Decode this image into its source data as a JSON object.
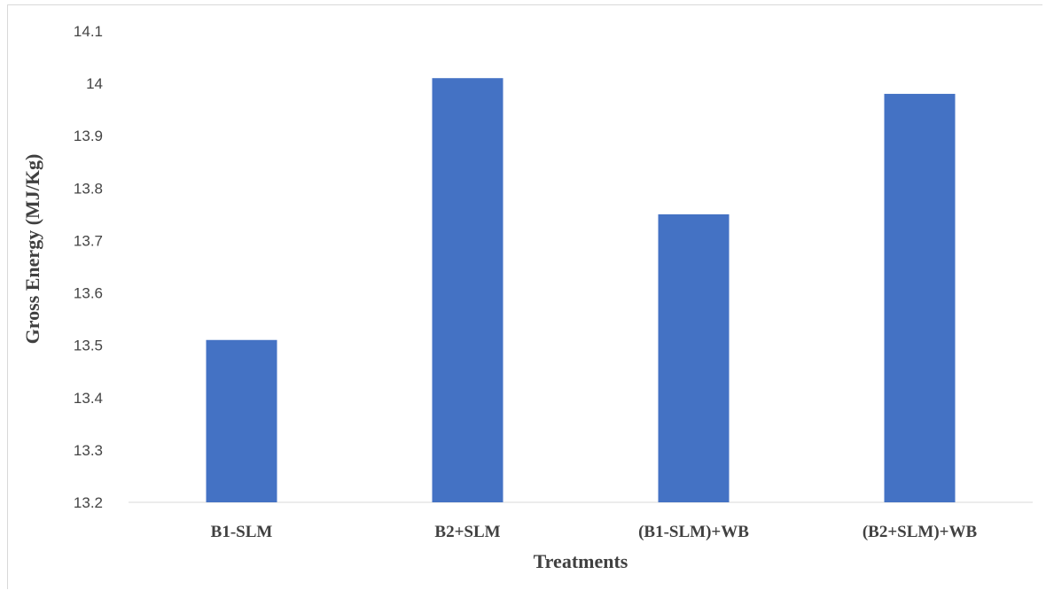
{
  "chart_data": {
    "type": "bar",
    "categories": [
      "B1-SLM",
      "B2+SLM",
      "(B1-SLM)+WB",
      "(B2+SLM)+WB"
    ],
    "values": [
      13.51,
      14.01,
      13.75,
      13.98
    ],
    "xlabel": "Treatments",
    "ylabel": "Gross Energy (MJ/Kg)",
    "ylim": [
      13.2,
      14.1
    ],
    "yticks": [
      "13.2",
      "13.3",
      "13.4",
      "13.5",
      "13.6",
      "13.7",
      "13.8",
      "13.9",
      "14",
      "14.1"
    ],
    "bar_color": "#4472c4",
    "grid": false,
    "legend": "none"
  }
}
